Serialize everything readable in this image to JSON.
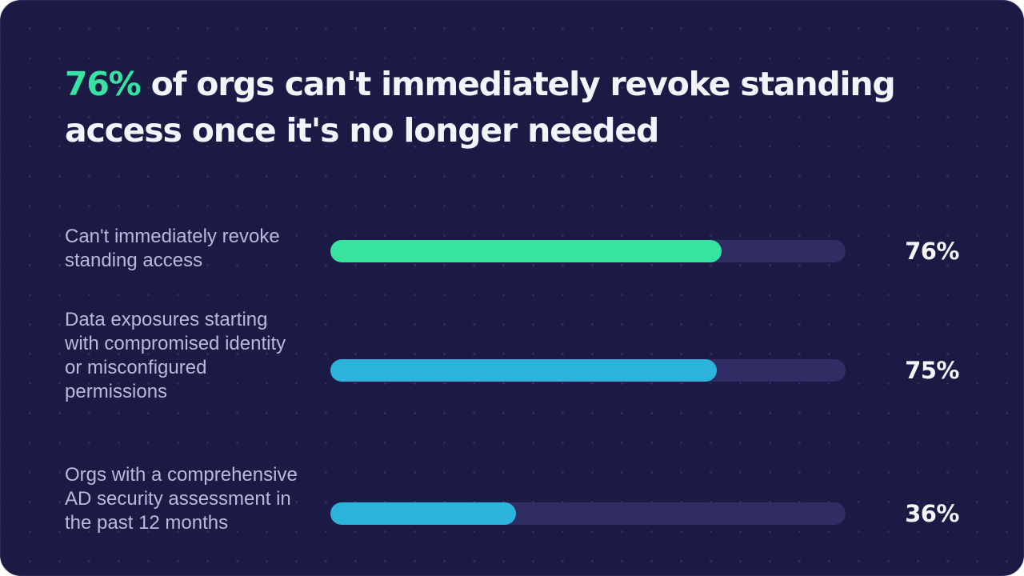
{
  "title": {
    "highlight": "76%",
    "rest": " of orgs can't immediately revoke standing access once it's no longer needed"
  },
  "colors": {
    "background": "#1b1a45",
    "track": "#2f2d63",
    "highlight_green": "#37e3a0",
    "bar_blue": "#2bb3dc",
    "label_text": "#b8b9dc",
    "value_text": "#f4f4fa"
  },
  "chart_data": {
    "type": "bar",
    "orientation": "horizontal",
    "categories": [
      "Can't immediately revoke standing access",
      "Data exposures starting with compromised identity or misconfigured permissions",
      "Orgs with a comprehensive AD security assessment in the past 12 months"
    ],
    "values": [
      76,
      75,
      36
    ],
    "value_labels": [
      "76%",
      "75%",
      "36%"
    ],
    "bar_colors": [
      "#37e3a0",
      "#2bb3dc",
      "#2bb3dc"
    ],
    "xlim": [
      0,
      100
    ],
    "unit": "%",
    "grid": false,
    "legend": "none"
  }
}
